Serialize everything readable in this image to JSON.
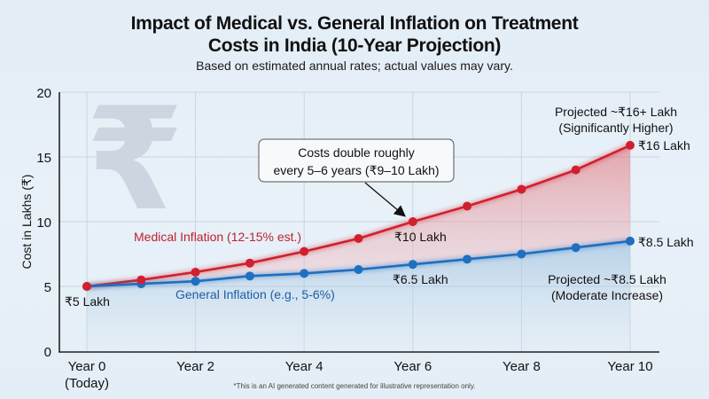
{
  "title_lines": [
    "Impact of Medical vs. General Inflation on Treatment",
    "Costs in India (10-Year Projection)"
  ],
  "subtitle": "Based on estimated annual rates; actual values may vary.",
  "footnote": "*This is an AI generated content generated for illustrative representation only.",
  "colors": {
    "medical": "#d0202e",
    "general": "#1f6fc0",
    "watermark": "#cbd6e0"
  },
  "watermark_icon": "rupee-icon",
  "chart_data": {
    "type": "line",
    "title": "Impact of Medical vs. General Inflation on Treatment Costs in India (10-Year Projection)",
    "subtitle": "Based on estimated annual rates; actual values may vary.",
    "xlabel": "",
    "ylabel": "Cost in Lakhs (₹)",
    "x": [
      0,
      1,
      2,
      3,
      4,
      5,
      6,
      7,
      8,
      9,
      10
    ],
    "xlim": [
      0,
      10.5
    ],
    "ylim": [
      0,
      20
    ],
    "grid": true,
    "x_ticks": [
      {
        "value": 0,
        "label": "Year 0",
        "sub": "(Today)"
      },
      {
        "value": 2,
        "label": "Year 2"
      },
      {
        "value": 4,
        "label": "Year 4"
      },
      {
        "value": 6,
        "label": "Year 6"
      },
      {
        "value": 8,
        "label": "Year 8"
      },
      {
        "value": 10,
        "label": "Year 10"
      }
    ],
    "y_ticks": [
      0,
      5,
      10,
      15,
      20
    ],
    "series": [
      {
        "name": "Medical Inflation (12-15% est.)",
        "color": "#d0202e",
        "values": [
          5.0,
          5.5,
          6.1,
          6.8,
          7.7,
          8.7,
          10.0,
          11.2,
          12.5,
          14.0,
          15.9
        ]
      },
      {
        "name": "General Inflation (e.g., 5-6%)",
        "color": "#1f6fc0",
        "values": [
          5.0,
          5.2,
          5.4,
          5.8,
          6.0,
          6.3,
          6.7,
          7.1,
          7.5,
          8.0,
          8.5
        ]
      }
    ],
    "annotations": {
      "start": "₹5 Lakh",
      "medical_mid": "₹10 Lakh",
      "general_mid": "₹6.5 Lakh",
      "medical_end": "₹16 Lakh",
      "general_end": "₹8.5 Lakh",
      "medical_projection": [
        "Projected ~₹16+ Lakh",
        "(Significantly Higher)"
      ],
      "general_projection": [
        "Projected ~₹8.5 Lakh",
        "(Moderate Increase)"
      ],
      "callout": [
        "Costs double roughly",
        "every 5–6 years (₹9–10 Lakh)"
      ]
    }
  }
}
